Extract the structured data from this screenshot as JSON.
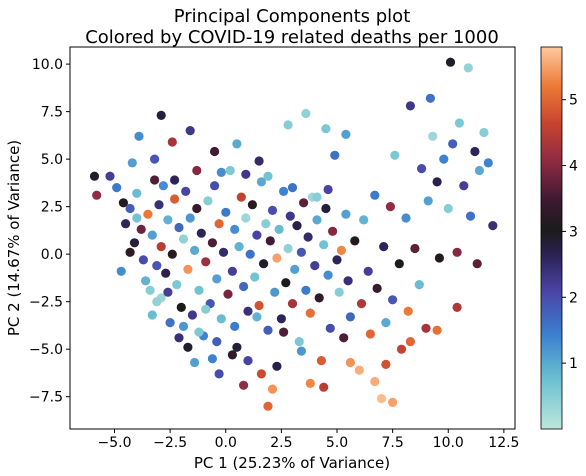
{
  "chart_data": {
    "type": "scatter",
    "title": "Principal Components plot",
    "subtitle": "Colored by COVID-19 related deaths per 1000",
    "xlabel": "PC 1 (25.23% of Variance)",
    "ylabel": "PC 2 (14.67% of Variance)",
    "xlim": [
      -7,
      13
    ],
    "ylim": [
      -9.2,
      10.9
    ],
    "x_ticks": [
      -5.0,
      -2.5,
      0.0,
      2.5,
      5.0,
      7.5,
      10.0,
      12.5
    ],
    "x_tick_labels": [
      "−5.0",
      "−2.5",
      "0.0",
      "2.5",
      "5.0",
      "7.5",
      "10.0",
      "12.5"
    ],
    "y_ticks": [
      -7.5,
      -5.0,
      -2.5,
      0.0,
      2.5,
      5.0,
      7.5,
      10.0
    ],
    "y_tick_labels": [
      "−7.5",
      "−5.0",
      "−2.5",
      "0.0",
      "2.5",
      "5.0",
      "7.5",
      "10.0"
    ],
    "grid": false,
    "colorbar": {
      "colormap": "icefire",
      "range": [
        0,
        5.8
      ],
      "ticks": [
        1,
        2,
        3,
        4,
        5
      ],
      "tick_labels": [
        "1",
        "2",
        "3",
        "4",
        "5"
      ]
    },
    "points": [
      [
        -5.9,
        4.1,
        2.9
      ],
      [
        -5.8,
        3.1,
        4.1
      ],
      [
        -5.2,
        4.1,
        2.2
      ],
      [
        -4.9,
        3.5,
        1.5
      ],
      [
        -4.6,
        2.7,
        3.1
      ],
      [
        -4.5,
        1.6,
        2.6
      ],
      [
        -4.3,
        2.4,
        1.8
      ],
      [
        -4.1,
        0.6,
        2.8
      ],
      [
        -4.0,
        3.2,
        0.8
      ],
      [
        -3.8,
        1.3,
        3.8
      ],
      [
        -3.7,
        -0.3,
        2.0
      ],
      [
        -3.5,
        2.1,
        5.2
      ],
      [
        -3.4,
        -1.9,
        0.5
      ],
      [
        -3.3,
        1.0,
        1.1
      ],
      [
        -3.2,
        3.9,
        3.6
      ],
      [
        -3.1,
        -0.6,
        1.9
      ],
      [
        -3.0,
        2.6,
        2.4
      ],
      [
        -2.9,
        -2.3,
        0.3
      ],
      [
        -2.9,
        0.4,
        4.5
      ],
      [
        -2.8,
        3.6,
        1.3
      ],
      [
        -2.7,
        -1.0,
        2.7
      ],
      [
        -2.6,
        1.8,
        0.9
      ],
      [
        -2.5,
        -3.6,
        1.6
      ],
      [
        -2.4,
        0.0,
        3.2
      ],
      [
        -2.3,
        2.9,
        4.9
      ],
      [
        -2.2,
        -1.6,
        0.6
      ],
      [
        -2.1,
        1.4,
        1.7
      ],
      [
        -2.0,
        -2.8,
        3.0
      ],
      [
        -1.9,
        0.8,
        0.4
      ],
      [
        -1.8,
        3.3,
        2.1
      ],
      [
        -1.7,
        -0.8,
        5.4
      ],
      [
        -1.6,
        1.9,
        1.2
      ],
      [
        -1.5,
        -3.2,
        2.3
      ],
      [
        -1.4,
        0.2,
        1.0
      ],
      [
        -1.3,
        2.4,
        3.4
      ],
      [
        -1.2,
        -1.9,
        0.7
      ],
      [
        -1.1,
        1.1,
        2.6
      ],
      [
        -1.0,
        -4.3,
        1.4
      ],
      [
        -0.9,
        -0.4,
        4.2
      ],
      [
        -0.8,
        2.8,
        0.5
      ],
      [
        -0.7,
        -2.6,
        1.9
      ],
      [
        -0.6,
        0.6,
        3.6
      ],
      [
        -0.5,
        3.6,
        2.0
      ],
      [
        -0.4,
        -1.3,
        1.1
      ],
      [
        -0.3,
        1.6,
        5.0
      ],
      [
        -0.2,
        -3.4,
        0.8
      ],
      [
        -0.1,
        0.1,
        2.5
      ],
      [
        0.0,
        2.2,
        1.5
      ],
      [
        0.1,
        -2.1,
        3.9
      ],
      [
        0.2,
        4.4,
        0.6
      ],
      [
        0.3,
        -0.9,
        2.2
      ],
      [
        0.4,
        1.3,
        1.3
      ],
      [
        0.5,
        -4.9,
        2.8
      ],
      [
        0.6,
        0.4,
        0.9
      ],
      [
        0.7,
        3.0,
        4.6
      ],
      [
        0.8,
        -1.7,
        1.7
      ],
      [
        0.9,
        1.9,
        0.3
      ],
      [
        1.0,
        -3.0,
        2.4
      ],
      [
        1.1,
        0.0,
        1.6
      ],
      [
        1.2,
        2.6,
        3.2
      ],
      [
        1.3,
        -1.2,
        0.7
      ],
      [
        1.4,
        1.0,
        2.1
      ],
      [
        1.5,
        -2.7,
        4.8
      ],
      [
        1.6,
        3.8,
        1.0
      ],
      [
        1.7,
        -0.5,
        2.9
      ],
      [
        1.8,
        1.6,
        0.5
      ],
      [
        1.9,
        -4.0,
        1.8
      ],
      [
        2.0,
        0.7,
        3.5
      ],
      [
        2.1,
        2.3,
        2.0
      ],
      [
        2.2,
        -2.0,
        1.2
      ],
      [
        2.3,
        -0.2,
        5.5
      ],
      [
        2.4,
        1.3,
        0.8
      ],
      [
        2.5,
        -3.4,
        2.6
      ],
      [
        2.6,
        3.3,
        1.4
      ],
      [
        2.7,
        -1.5,
        3.0
      ],
      [
        2.8,
        0.3,
        0.4
      ],
      [
        2.9,
        2.0,
        2.3
      ],
      [
        3.0,
        -2.6,
        4.3
      ],
      [
        3.1,
        -0.8,
        1.1
      ],
      [
        3.2,
        1.5,
        2.7
      ],
      [
        3.3,
        -4.6,
        0.6
      ],
      [
        3.4,
        0.1,
        1.9
      ],
      [
        3.5,
        2.7,
        3.7
      ],
      [
        3.6,
        -1.9,
        1.5
      ],
      [
        3.7,
        0.9,
        2.5
      ],
      [
        3.8,
        -3.1,
        5.1
      ],
      [
        3.9,
        3.0,
        0.3
      ],
      [
        4.0,
        -0.6,
        2.2
      ],
      [
        4.1,
        1.8,
        1.0
      ],
      [
        4.2,
        -2.3,
        3.3
      ],
      [
        4.3,
        -5.6,
        4.9
      ],
      [
        4.4,
        0.5,
        0.7
      ],
      [
        4.5,
        2.4,
        2.8
      ],
      [
        4.6,
        -1.1,
        1.3
      ],
      [
        4.7,
        -3.9,
        2.0
      ],
      [
        4.8,
        1.2,
        4.0
      ],
      [
        4.9,
        5.2,
        1.6
      ],
      [
        5.0,
        -0.3,
        2.6
      ],
      [
        5.1,
        -2.0,
        0.5
      ],
      [
        5.2,
        0.2,
        5.3
      ],
      [
        5.3,
        -4.4,
        3.6
      ],
      [
        5.4,
        2.1,
        1.1
      ],
      [
        5.5,
        -1.4,
        2.4
      ],
      [
        5.6,
        -3.3,
        1.7
      ],
      [
        5.8,
        0.7,
        3.1
      ],
      [
        6.0,
        -6.1,
        5.6
      ],
      [
        6.1,
        -2.6,
        4.4
      ],
      [
        6.2,
        1.8,
        0.9
      ],
      [
        6.4,
        -0.9,
        2.2
      ],
      [
        6.5,
        -4.2,
        5.0
      ],
      [
        6.7,
        3.1,
        1.5
      ],
      [
        6.8,
        -1.8,
        3.4
      ],
      [
        7.0,
        -7.6,
        5.7
      ],
      [
        7.1,
        0.4,
        2.6
      ],
      [
        7.2,
        -3.6,
        1.0
      ],
      [
        7.4,
        2.5,
        4.1
      ],
      [
        7.5,
        -2.4,
        1.9
      ],
      [
        7.6,
        5.2,
        0.6
      ],
      [
        7.8,
        -0.5,
        3.0
      ],
      [
        7.9,
        -5.0,
        4.6
      ],
      [
        8.1,
        1.9,
        1.3
      ],
      [
        8.2,
        -3.0,
        5.2
      ],
      [
        8.3,
        7.8,
        2.3
      ],
      [
        8.5,
        0.3,
        3.7
      ],
      [
        8.7,
        -1.6,
        0.8
      ],
      [
        8.8,
        4.5,
        2.0
      ],
      [
        9.0,
        -3.9,
        4.3
      ],
      [
        9.1,
        2.8,
        1.1
      ],
      [
        9.2,
        8.2,
        1.6
      ],
      [
        9.3,
        6.2,
        0.3
      ],
      [
        9.5,
        3.8,
        2.7
      ],
      [
        9.6,
        -0.2,
        3.1
      ],
      [
        9.8,
        5.0,
        1.4
      ],
      [
        10.0,
        2.4,
        0.5
      ],
      [
        10.1,
        10.1,
        2.9
      ],
      [
        10.2,
        5.8,
        1.8
      ],
      [
        10.4,
        0.1,
        4.0
      ],
      [
        10.5,
        6.9,
        0.6
      ],
      [
        10.7,
        3.6,
        2.2
      ],
      [
        10.9,
        9.8,
        0.4
      ],
      [
        11.0,
        2.0,
        1.6
      ],
      [
        11.2,
        5.4,
        2.6
      ],
      [
        11.4,
        4.4,
        1.0
      ],
      [
        11.6,
        6.4,
        0.5
      ],
      [
        11.8,
        4.8,
        1.4
      ],
      [
        -4.7,
        -0.9,
        1.3
      ],
      [
        -3.6,
        -1.4,
        0.9
      ],
      [
        -2.6,
        -2.0,
        2.2
      ],
      [
        -1.9,
        -3.8,
        1.2
      ],
      [
        -1.2,
        -4.1,
        0.6
      ],
      [
        -0.4,
        -4.6,
        1.8
      ],
      [
        0.3,
        -5.3,
        3.3
      ],
      [
        1.0,
        -5.6,
        2.1
      ],
      [
        1.6,
        -6.3,
        4.7
      ],
      [
        2.1,
        -7.1,
        5.4
      ],
      [
        1.9,
        -8.0,
        5.0
      ],
      [
        -0.6,
        -5.5,
        1.4
      ],
      [
        -1.7,
        -4.9,
        2.9
      ],
      [
        -3.1,
        -2.5,
        0.4
      ],
      [
        -4.3,
        0.1,
        3.3
      ],
      [
        -4.0,
        1.9,
        0.7
      ],
      [
        -2.3,
        3.9,
        2.6
      ],
      [
        -1.3,
        4.4,
        4.0
      ],
      [
        -0.2,
        4.3,
        1.3
      ],
      [
        0.9,
        4.2,
        2.3
      ],
      [
        1.9,
        4.1,
        0.7
      ],
      [
        3.0,
        3.5,
        1.6
      ],
      [
        4.1,
        3.0,
        0.5
      ],
      [
        4.6,
        3.4,
        2.1
      ],
      [
        5.4,
        6.3,
        1.1
      ],
      [
        -2.9,
        7.3,
        2.8
      ],
      [
        -3.9,
        6.2,
        1.3
      ],
      [
        -1.6,
        6.5,
        2.3
      ],
      [
        -0.5,
        5.4,
        3.5
      ],
      [
        0.5,
        5.8,
        1.0
      ],
      [
        1.5,
        4.9,
        2.5
      ],
      [
        2.8,
        6.8,
        0.5
      ],
      [
        3.6,
        7.4,
        0.4
      ],
      [
        4.5,
        6.6,
        0.6
      ],
      [
        -2.4,
        5.9,
        4.3
      ],
      [
        -3.2,
        5.0,
        1.9
      ],
      [
        -4.2,
        4.8,
        1.1
      ],
      [
        -3.3,
        -3.2,
        0.8
      ],
      [
        -2.1,
        -4.4,
        2.4
      ],
      [
        -0.9,
        -2.9,
        0.5
      ],
      [
        0.4,
        -3.8,
        1.5
      ],
      [
        1.4,
        -3.3,
        0.9
      ],
      [
        2.6,
        -4.1,
        3.6
      ],
      [
        3.4,
        -5.1,
        1.2
      ],
      [
        2.3,
        -5.9,
        2.7
      ],
      [
        0.8,
        -6.9,
        4.1
      ],
      [
        -0.3,
        -6.3,
        2.0
      ],
      [
        -1.4,
        -5.7,
        1.1
      ],
      [
        3.8,
        -6.8,
        5.3
      ],
      [
        4.4,
        -7.0,
        4.5
      ],
      [
        5.6,
        -5.7,
        5.4
      ],
      [
        6.7,
        -6.7,
        5.6
      ],
      [
        7.5,
        -7.8,
        5.5
      ],
      [
        7.2,
        -5.8,
        4.8
      ],
      [
        8.3,
        -4.6,
        5.0
      ],
      [
        9.5,
        -4.0,
        5.1
      ],
      [
        10.4,
        -2.8,
        4.4
      ],
      [
        11.3,
        -0.5,
        3.7
      ],
      [
        12.0,
        1.5,
        2.4
      ]
    ]
  }
}
